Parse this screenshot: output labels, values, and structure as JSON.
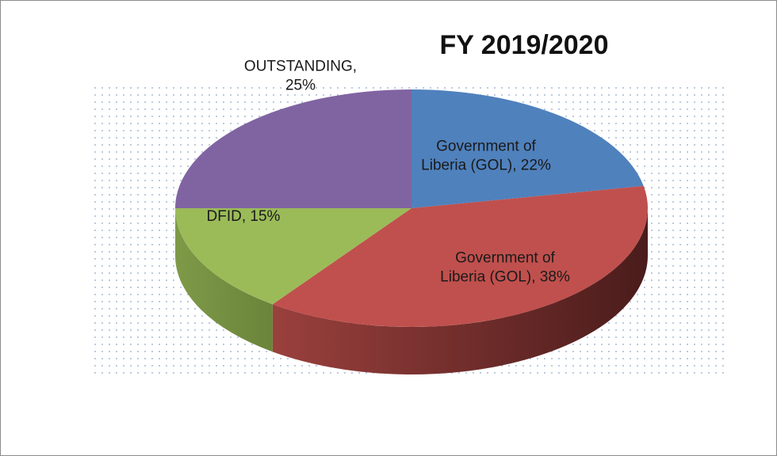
{
  "chart_data": {
    "type": "pie",
    "title": "FY 2019/2020",
    "values": [
      22,
      38,
      15,
      25
    ],
    "value_labels": [
      "Government of Liberia (GOL), 22%",
      "Government of Liberia (GOL), 38%",
      "DFID, 15%",
      "OUTSTANDING, 25%"
    ],
    "colors": [
      "#4f81bd",
      "#c0504d",
      "#9bbb59",
      "#8064a2"
    ]
  }
}
